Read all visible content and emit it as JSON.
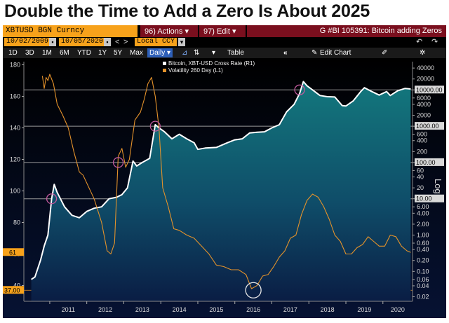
{
  "headline": "Double the Time to Add a Zero Is About 2025",
  "terminal": {
    "ticker": "XBTUSD BGN Curncy",
    "actions_label": "96) Actions ▾",
    "edit_label": "97) Edit ▾",
    "page_id": "G #BI 105391: Bitcoin adding Zeros",
    "date_from": "10/02/2009",
    "date_to": "10/05/2020",
    "nav_prev": "<",
    "nav_next": ">",
    "currency": "Local CCY",
    "periods": [
      "1D",
      "3D",
      "1M",
      "6M",
      "YTD",
      "1Y",
      "5Y",
      "Max"
    ],
    "frequency": "Daily ▾",
    "table_label": "Table",
    "edit_chart_label": "Edit Chart",
    "collapse_icon": "double-chevron-left",
    "back_icon": "undo",
    "forward_icon": "redo",
    "gear_icon": "gear",
    "chart_tool_icon": "line-chart",
    "crosshair_icon": "arrows-vertical",
    "pencil_icon": "pencil"
  },
  "chart_data": {
    "type": "line",
    "legend": [
      {
        "name": "Bitcoin, XBT-USD Cross Rate (R1)",
        "color": "#ffffff"
      },
      {
        "name": "Volatility 260 Day (L1)",
        "color": "#e3922b"
      }
    ],
    "legend_position": "top-center",
    "left_axis": {
      "ticks": [
        "180",
        "160",
        "140",
        "120",
        "100",
        "80",
        "60",
        "40"
      ],
      "range": [
        30,
        182
      ],
      "last_value_label": "61",
      "last_value_color": "#f7a21b"
    },
    "right_axis": {
      "scale": "log",
      "label": "Log",
      "ticks": [
        "40000",
        "20000",
        "10000.00",
        "6000",
        "4000",
        "2000",
        "1000.00",
        "600",
        "400",
        "200",
        "100.00",
        "60",
        "40",
        "20",
        "10.00",
        "6.00",
        "4.00",
        "2.00",
        "1.00",
        "0.60",
        "0.40",
        "0.20",
        "0.10",
        "0.06",
        "0.04",
        "0.02"
      ],
      "highlighted_ticks": [
        "10000.00",
        "1000.00",
        "100.00",
        "10.00"
      ],
      "range": [
        0.015,
        60000
      ]
    },
    "x_axis": {
      "ticks": [
        "2011",
        "2012",
        "2013",
        "2014",
        "2015",
        "2016",
        "2017",
        "2018",
        "2019",
        "2020"
      ],
      "range": [
        2010.3,
        2020.8
      ]
    },
    "reference_lines_usd": [
      10,
      100,
      1000,
      10000
    ],
    "reference_line_volatility": 37,
    "reference_line_volatility_label": "37.00",
    "markers": [
      {
        "x": 2011.05,
        "y_usd": 10,
        "color": "#c05a9c"
      },
      {
        "x": 2012.85,
        "y_usd": 100,
        "color": "#c05a9c"
      },
      {
        "x": 2013.85,
        "y_usd": 1000,
        "color": "#c05a9c"
      },
      {
        "x": 2017.75,
        "y_usd": 10000,
        "color": "#c05a9c"
      },
      {
        "x": 2016.5,
        "y_vol": 37,
        "color": "#e8e8e8"
      }
    ],
    "series": [
      {
        "name": "Bitcoin, XBT-USD Cross Rate (R1)",
        "axis": "right",
        "x": [
          2010.5,
          2010.6,
          2010.75,
          2010.85,
          2010.95,
          2011.05,
          2011.12,
          2011.2,
          2011.4,
          2011.6,
          2011.8,
          2012.0,
          2012.2,
          2012.4,
          2012.6,
          2012.8,
          2012.95,
          2013.1,
          2013.25,
          2013.35,
          2013.5,
          2013.7,
          2013.85,
          2013.95,
          2014.1,
          2014.3,
          2014.5,
          2014.7,
          2014.9,
          2015.0,
          2015.2,
          2015.5,
          2015.8,
          2016.0,
          2016.2,
          2016.4,
          2016.6,
          2016.8,
          2017.0,
          2017.2,
          2017.4,
          2017.6,
          2017.75,
          2017.85,
          2017.95,
          2018.1,
          2018.3,
          2018.5,
          2018.7,
          2018.9,
          2019.0,
          2019.2,
          2019.4,
          2019.5,
          2019.7,
          2019.9,
          2020.1,
          2020.2,
          2020.4,
          2020.6,
          2020.75
        ],
        "values": [
          0.06,
          0.07,
          0.2,
          0.5,
          1.0,
          10,
          25,
          15,
          6,
          3.5,
          3.0,
          4.5,
          5.5,
          6.0,
          10,
          11,
          13,
          20,
          110,
          80,
          100,
          130,
          1100,
          900,
          700,
          450,
          600,
          450,
          350,
          230,
          250,
          260,
          350,
          420,
          450,
          650,
          680,
          700,
          900,
          1100,
          2500,
          4000,
          8000,
          17000,
          13000,
          10000,
          7000,
          6500,
          6400,
          3700,
          3600,
          5000,
          9000,
          11500,
          9000,
          7200,
          9000,
          7000,
          9500,
          11000,
          10600
        ]
      },
      {
        "name": "Volatility 260 Day (L1)",
        "axis": "left",
        "x": [
          2010.8,
          2010.85,
          2010.9,
          2010.95,
          2011.0,
          2011.1,
          2011.2,
          2011.35,
          2011.5,
          2011.65,
          2011.8,
          2011.9,
          2012.0,
          2012.2,
          2012.4,
          2012.55,
          2012.65,
          2012.75,
          2012.85,
          2012.95,
          2013.05,
          2013.15,
          2013.3,
          2013.45,
          2013.55,
          2013.65,
          2013.75,
          2013.85,
          2013.95,
          2014.05,
          2014.2,
          2014.35,
          2014.5,
          2014.7,
          2014.9,
          2015.1,
          2015.3,
          2015.5,
          2015.7,
          2015.9,
          2016.1,
          2016.3,
          2016.45,
          2016.6,
          2016.75,
          2016.9,
          2017.05,
          2017.2,
          2017.35,
          2017.5,
          2017.65,
          2017.8,
          2017.95,
          2018.1,
          2018.25,
          2018.4,
          2018.55,
          2018.7,
          2018.85,
          2019.0,
          2019.15,
          2019.3,
          2019.45,
          2019.6,
          2019.75,
          2019.9,
          2020.05,
          2020.2,
          2020.35,
          2020.5,
          2020.65,
          2020.75
        ],
        "values": [
          173,
          165,
          172,
          170,
          174,
          168,
          155,
          148,
          140,
          125,
          112,
          110,
          105,
          95,
          80,
          62,
          60,
          67,
          122,
          127,
          115,
          120,
          145,
          150,
          158,
          168,
          172,
          160,
          140,
          102,
          90,
          76,
          75,
          72,
          70,
          65,
          60,
          53,
          52,
          50,
          50,
          47,
          38,
          40,
          46,
          47,
          52,
          58,
          62,
          70,
          72,
          85,
          94,
          98,
          96,
          90,
          82,
          72,
          68,
          60,
          60,
          64,
          66,
          71,
          68,
          65,
          65,
          72,
          71,
          65,
          62,
          61
        ]
      }
    ]
  }
}
